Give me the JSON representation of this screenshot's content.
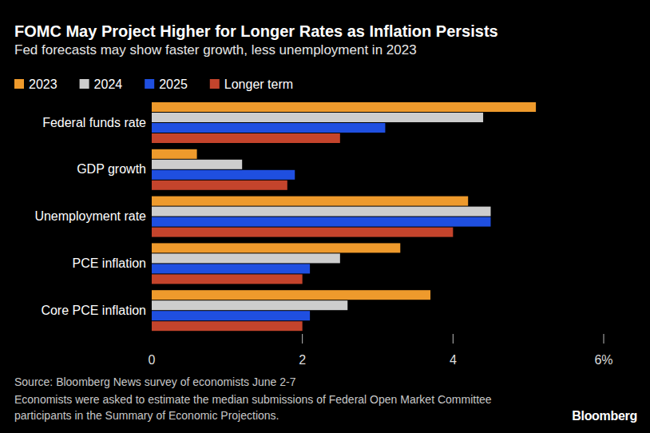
{
  "chart_data": {
    "type": "bar",
    "orientation": "horizontal",
    "title": "FOMC May Project Higher for Longer Rates as Inflation Persists",
    "subtitle": "Fed forecasts may show faster growth, less unemployment in 2023",
    "categories": [
      "Federal funds rate",
      "GDP growth",
      "Unemployment rate",
      "PCE inflation",
      "Core PCE inflation"
    ],
    "series": [
      {
        "name": "2023",
        "color": "#ee9a2c",
        "values": [
          5.1,
          0.6,
          4.2,
          3.3,
          3.7
        ]
      },
      {
        "name": "2024",
        "color": "#cdcdcd",
        "values": [
          4.4,
          1.2,
          4.5,
          2.5,
          2.6
        ]
      },
      {
        "name": "2025",
        "color": "#1f4fe0",
        "values": [
          3.1,
          1.9,
          4.5,
          2.1,
          2.1
        ]
      },
      {
        "name": "Longer term",
        "color": "#c4442c",
        "values": [
          2.5,
          1.8,
          4.0,
          2.0,
          2.0
        ]
      }
    ],
    "xlim": [
      0,
      6
    ],
    "xticks": [
      0,
      2,
      4,
      {
        "value": 6,
        "label": "6%"
      }
    ],
    "grid": false,
    "legend": "top-left",
    "source": "Source: Bloomberg News survey of economists June 2-7",
    "note": "Economists were asked to estimate the median submissions of Federal Open Market Committee participants in the Summary of Economic Projections.",
    "logo": "Bloomberg"
  }
}
